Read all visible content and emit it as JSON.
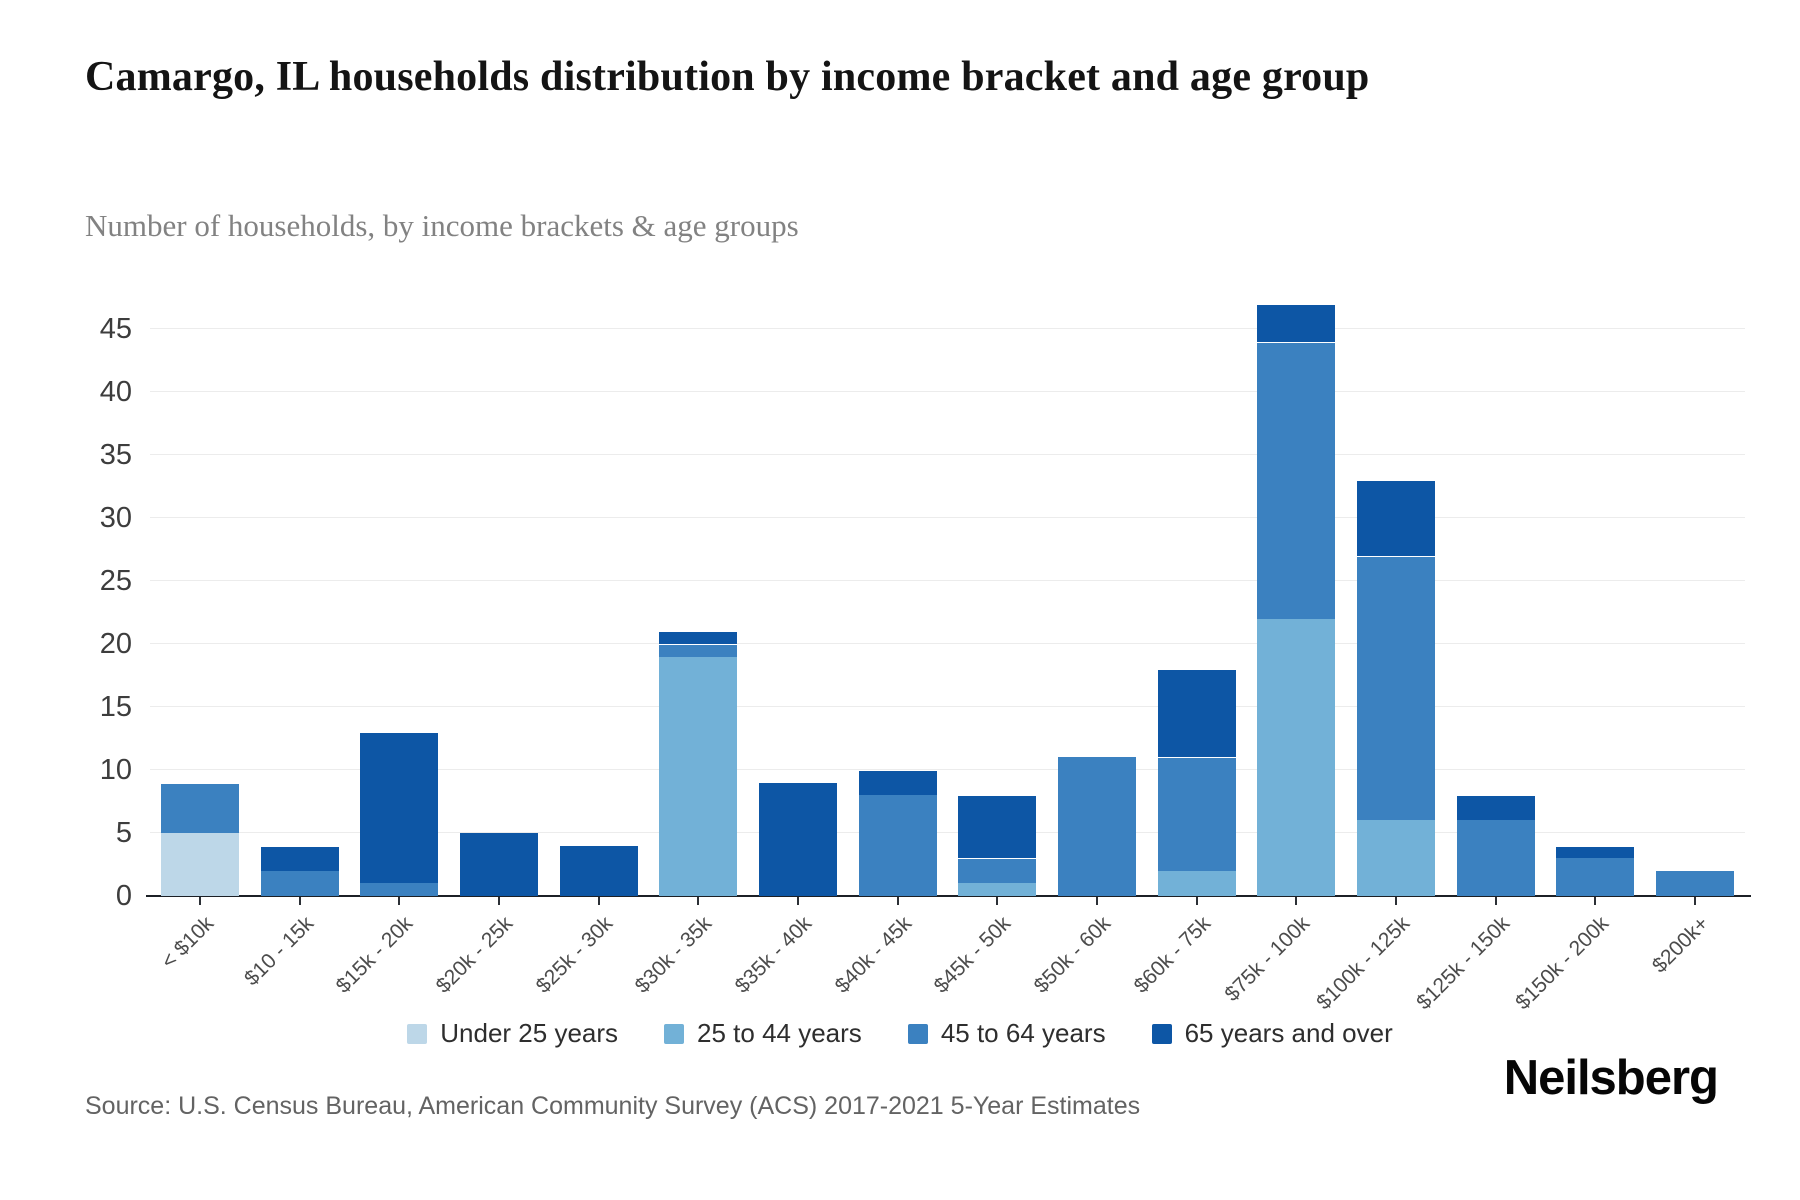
{
  "header": {
    "title": "Camargo, IL households distribution by income bracket and age group",
    "subtitle": "Number of households, by income brackets & age groups"
  },
  "footer": {
    "source": "Source: U.S. Census Bureau, American Community Survey (ACS) 2017-2021 5-Year Estimates",
    "brand": "Neilsberg"
  },
  "chart_data": {
    "type": "bar",
    "stacked": true,
    "title": "Camargo, IL households distribution by income bracket and age group",
    "subtitle": "Number of households, by income brackets & age groups",
    "categories": [
      "< $10k",
      "$10 - 15k",
      "$15k - 20k",
      "$20k - 25k",
      "$25k - 30k",
      "$30k - 35k",
      "$35k - 40k",
      "$40k - 45k",
      "$45k - 50k",
      "$50k - 60k",
      "$60k - 75k",
      "$75k - 100k",
      "$100k - 125k",
      "$125k - 150k",
      "$150k - 200k",
      "$200k+"
    ],
    "series": [
      {
        "name": "Under 25 years",
        "color": "#bdd7e8",
        "values": [
          5,
          0,
          0,
          0,
          0,
          0,
          0,
          0,
          0,
          0,
          0,
          0,
          0,
          0,
          0,
          0
        ]
      },
      {
        "name": "25 to 44 years",
        "color": "#72b1d7",
        "values": [
          0,
          0,
          0,
          0,
          0,
          19,
          0,
          0,
          1,
          0,
          2,
          22,
          6,
          0,
          0,
          0
        ]
      },
      {
        "name": "45 to 64 years",
        "color": "#3b81c0",
        "values": [
          4,
          2,
          1,
          0,
          0,
          1,
          0,
          8,
          2,
          11,
          9,
          22,
          21,
          6,
          3,
          2
        ]
      },
      {
        "name": "65 years and over",
        "color": "#0d56a5",
        "values": [
          0,
          2,
          12,
          5,
          4,
          1,
          9,
          2,
          5,
          0,
          7,
          3,
          6,
          2,
          1,
          0
        ]
      }
    ],
    "totals": [
      9,
      4,
      13,
      5,
      4,
      21,
      9,
      10,
      8,
      11,
      18,
      47,
      33,
      8,
      4,
      2
    ],
    "xlabel": "",
    "ylabel": "",
    "ylim": [
      0,
      50
    ],
    "yticks": [
      0,
      5,
      10,
      15,
      20,
      25,
      30,
      35,
      40,
      45
    ],
    "grid": "horizontal",
    "legend_position": "bottom"
  }
}
